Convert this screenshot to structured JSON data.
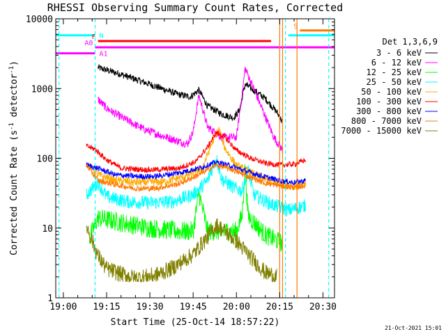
{
  "chart_data": {
    "type": "line",
    "title": "RHESSI Observing Summary Count Rates, Corrected",
    "xlabel": "Start Time (25-Oct-14 18:57:22)",
    "ylabel_main": "Corrected Count Rate (s",
    "ylabel_sup1": "-1",
    "ylabel_mid": " detector",
    "ylabel_sup2": "-1",
    "ylabel_end": ")",
    "yscale": "log",
    "ylim": [
      1,
      10000
    ],
    "xlim": [
      "18:57:22",
      "20:34:00"
    ],
    "x_ticks": [
      {
        "t": "19:00",
        "label": "19:00"
      },
      {
        "t": "19:15",
        "label": "19:15"
      },
      {
        "t": "19:30",
        "label": "19:30"
      },
      {
        "t": "19:45",
        "label": "19:45"
      },
      {
        "t": "20:00",
        "label": "20:00"
      },
      {
        "t": "20:15",
        "label": "20:15"
      },
      {
        "t": "20:30",
        "label": "20:30"
      }
    ],
    "y_ticks": [
      {
        "v": 1,
        "label": "1"
      },
      {
        "v": 10,
        "label": "10"
      },
      {
        "v": 100,
        "label": "100"
      },
      {
        "v": 1000,
        "label": "1000"
      },
      {
        "v": 10000,
        "label": "10000"
      }
    ],
    "legend_title": "Det 1,3,6,9",
    "legend_position": "right",
    "series": [
      {
        "name": "3 - 6 keV",
        "color": "#000000",
        "points": [
          [
            "19:12",
            2000
          ],
          [
            "19:20",
            1600
          ],
          [
            "19:30",
            1150
          ],
          [
            "19:40",
            820
          ],
          [
            "19:44",
            760
          ],
          [
            "19:47",
            950
          ],
          [
            "19:50",
            560
          ],
          [
            "19:55",
            430
          ],
          [
            "19:59",
            380
          ],
          [
            "20:01",
            480
          ],
          [
            "20:03",
            1150
          ],
          [
            "20:06",
            950
          ],
          [
            "20:10",
            720
          ],
          [
            "20:14",
            460
          ],
          [
            "20:16",
            330
          ]
        ]
      },
      {
        "name": "6 - 12 keV",
        "color": "#ff00ff",
        "points": [
          [
            "19:12",
            700
          ],
          [
            "19:15",
            520
          ],
          [
            "19:20",
            390
          ],
          [
            "19:28",
            260
          ],
          [
            "19:35",
            205
          ],
          [
            "19:43",
            160
          ],
          [
            "19:45",
            240
          ],
          [
            "19:47",
            800
          ],
          [
            "19:50",
            280
          ],
          [
            "19:55",
            200
          ],
          [
            "20:00",
            200
          ],
          [
            "20:02",
            820
          ],
          [
            "20:03",
            1950
          ],
          [
            "20:06",
            1000
          ],
          [
            "20:09",
            500
          ],
          [
            "20:13",
            200
          ],
          [
            "20:16",
            130
          ]
        ]
      },
      {
        "name": "12 - 25 keV",
        "color": "#00ff00",
        "points": [
          [
            "19:09",
            7
          ],
          [
            "19:12",
            14
          ],
          [
            "19:20",
            12
          ],
          [
            "19:30",
            10
          ],
          [
            "19:40",
            9
          ],
          [
            "19:45",
            9
          ],
          [
            "19:47",
            32
          ],
          [
            "19:50",
            9
          ],
          [
            "19:55",
            9
          ],
          [
            "20:00",
            9
          ],
          [
            "20:02",
            15
          ],
          [
            "20:03",
            80
          ],
          [
            "20:04",
            15
          ],
          [
            "20:10",
            8
          ],
          [
            "20:16",
            6
          ]
        ]
      },
      {
        "name": "25 - 50 keV",
        "color": "#00ffff",
        "points": [
          [
            "19:08",
            30
          ],
          [
            "19:12",
            45
          ],
          [
            "19:15",
            28
          ],
          [
            "19:22",
            24
          ],
          [
            "19:30",
            23
          ],
          [
            "19:38",
            24
          ],
          [
            "19:45",
            30
          ],
          [
            "19:50",
            48
          ],
          [
            "19:53",
            100
          ],
          [
            "19:55",
            50
          ],
          [
            "19:59",
            38
          ],
          [
            "20:02",
            34
          ],
          [
            "20:04",
            68
          ],
          [
            "20:06",
            30
          ],
          [
            "20:12",
            22
          ],
          [
            "20:18",
            18
          ],
          [
            "20:24",
            21
          ]
        ]
      },
      {
        "name": "50 - 100 keV",
        "color": "#ffaa00",
        "points": [
          [
            "19:08",
            85
          ],
          [
            "19:12",
            58
          ],
          [
            "19:18",
            48
          ],
          [
            "19:25",
            45
          ],
          [
            "19:35",
            46
          ],
          [
            "19:42",
            55
          ],
          [
            "19:48",
            70
          ],
          [
            "19:52",
            185
          ],
          [
            "19:54",
            260
          ],
          [
            "19:56",
            140
          ],
          [
            "20:00",
            78
          ],
          [
            "20:05",
            62
          ],
          [
            "20:10",
            50
          ],
          [
            "20:15",
            43
          ],
          [
            "20:20",
            40
          ],
          [
            "20:24",
            42
          ]
        ]
      },
      {
        "name": "100 - 300 keV",
        "color": "#ff0000",
        "points": [
          [
            "19:08",
            150
          ],
          [
            "19:11",
            135
          ],
          [
            "19:15",
            95
          ],
          [
            "19:20",
            72
          ],
          [
            "19:30",
            68
          ],
          [
            "19:40",
            72
          ],
          [
            "19:46",
            90
          ],
          [
            "19:50",
            145
          ],
          [
            "19:53",
            235
          ],
          [
            "19:56",
            200
          ],
          [
            "20:00",
            130
          ],
          [
            "20:05",
            100
          ],
          [
            "20:10",
            85
          ],
          [
            "20:15",
            80
          ],
          [
            "20:20",
            82
          ],
          [
            "20:24",
            95
          ]
        ]
      },
      {
        "name": "300 - 800 keV",
        "color": "#0000ff",
        "points": [
          [
            "19:08",
            80
          ],
          [
            "19:12",
            72
          ],
          [
            "19:18",
            58
          ],
          [
            "19:25",
            55
          ],
          [
            "19:32",
            55
          ],
          [
            "19:40",
            62
          ],
          [
            "19:47",
            72
          ],
          [
            "19:53",
            88
          ],
          [
            "19:58",
            78
          ],
          [
            "20:04",
            64
          ],
          [
            "20:10",
            54
          ],
          [
            "20:16",
            47
          ],
          [
            "20:20",
            45
          ],
          [
            "20:24",
            48
          ]
        ]
      },
      {
        "name": "800 - 7000 keV",
        "color": "#ff7700",
        "points": [
          [
            "19:08",
            80
          ],
          [
            "19:12",
            48
          ],
          [
            "19:18",
            42
          ],
          [
            "19:25",
            37
          ],
          [
            "19:32",
            37
          ],
          [
            "19:40",
            43
          ],
          [
            "19:47",
            58
          ],
          [
            "19:53",
            80
          ],
          [
            "19:58",
            70
          ],
          [
            "20:04",
            55
          ],
          [
            "20:10",
            44
          ],
          [
            "20:16",
            40
          ],
          [
            "20:20",
            38
          ],
          [
            "20:24",
            41
          ]
        ]
      },
      {
        "name": "7000 - 15000 keV",
        "color": "#808000",
        "points": [
          [
            "19:08",
            11
          ],
          [
            "19:12",
            4
          ],
          [
            "19:15",
            2.6
          ],
          [
            "19:20",
            2.2
          ],
          [
            "19:25",
            1.9
          ],
          [
            "19:32",
            2.1
          ],
          [
            "19:38",
            2.7
          ],
          [
            "19:45",
            4.2
          ],
          [
            "19:50",
            7.5
          ],
          [
            "19:53",
            11
          ],
          [
            "19:56",
            9
          ],
          [
            "20:00",
            6.5
          ],
          [
            "20:05",
            3.8
          ],
          [
            "20:10",
            2.3
          ],
          [
            "20:14",
            2
          ]
        ]
      }
    ],
    "attenuator_states": [
      {
        "label": "N",
        "color": "#00ffff",
        "level": 5800,
        "segments": [
          [
            "18:57:22",
            "19:11"
          ],
          [
            "20:18",
            "20:34"
          ]
        ]
      },
      {
        "label": "F",
        "color": "#ff0000",
        "level": 4800,
        "segments": [
          [
            "19:12",
            "20:12"
          ]
        ]
      },
      {
        "label": "A0",
        "color": "#ff00ff",
        "level": 3900,
        "segments": [
          [
            "19:11",
            "20:34"
          ]
        ]
      },
      {
        "label": "A1",
        "color": "#ff00ff",
        "level": 3200,
        "segments": [
          [
            "18:57:22",
            "19:11"
          ]
        ]
      },
      {
        "label": "S",
        "color": "#ff7700",
        "level": 6800,
        "segments": [
          [
            "20:22",
            "20:34"
          ]
        ]
      }
    ],
    "markers": [
      {
        "t": "18:58:30",
        "color": "#00ffff",
        "style": "dashed"
      },
      {
        "t": "19:11",
        "color": "#00ffff",
        "style": "dashed"
      },
      {
        "t": "20:15",
        "color": "#ff7700",
        "style": "solid"
      },
      {
        "t": "20:16",
        "color": "#ff7700",
        "style": "solid"
      },
      {
        "t": "20:17",
        "color": "#00ffff",
        "style": "dashed"
      },
      {
        "t": "20:21",
        "color": "#ff7700",
        "style": "solid"
      },
      {
        "t": "20:32",
        "color": "#00ffff",
        "style": "dashed"
      }
    ],
    "timestamp": "21-Oct-2021 15:01"
  }
}
